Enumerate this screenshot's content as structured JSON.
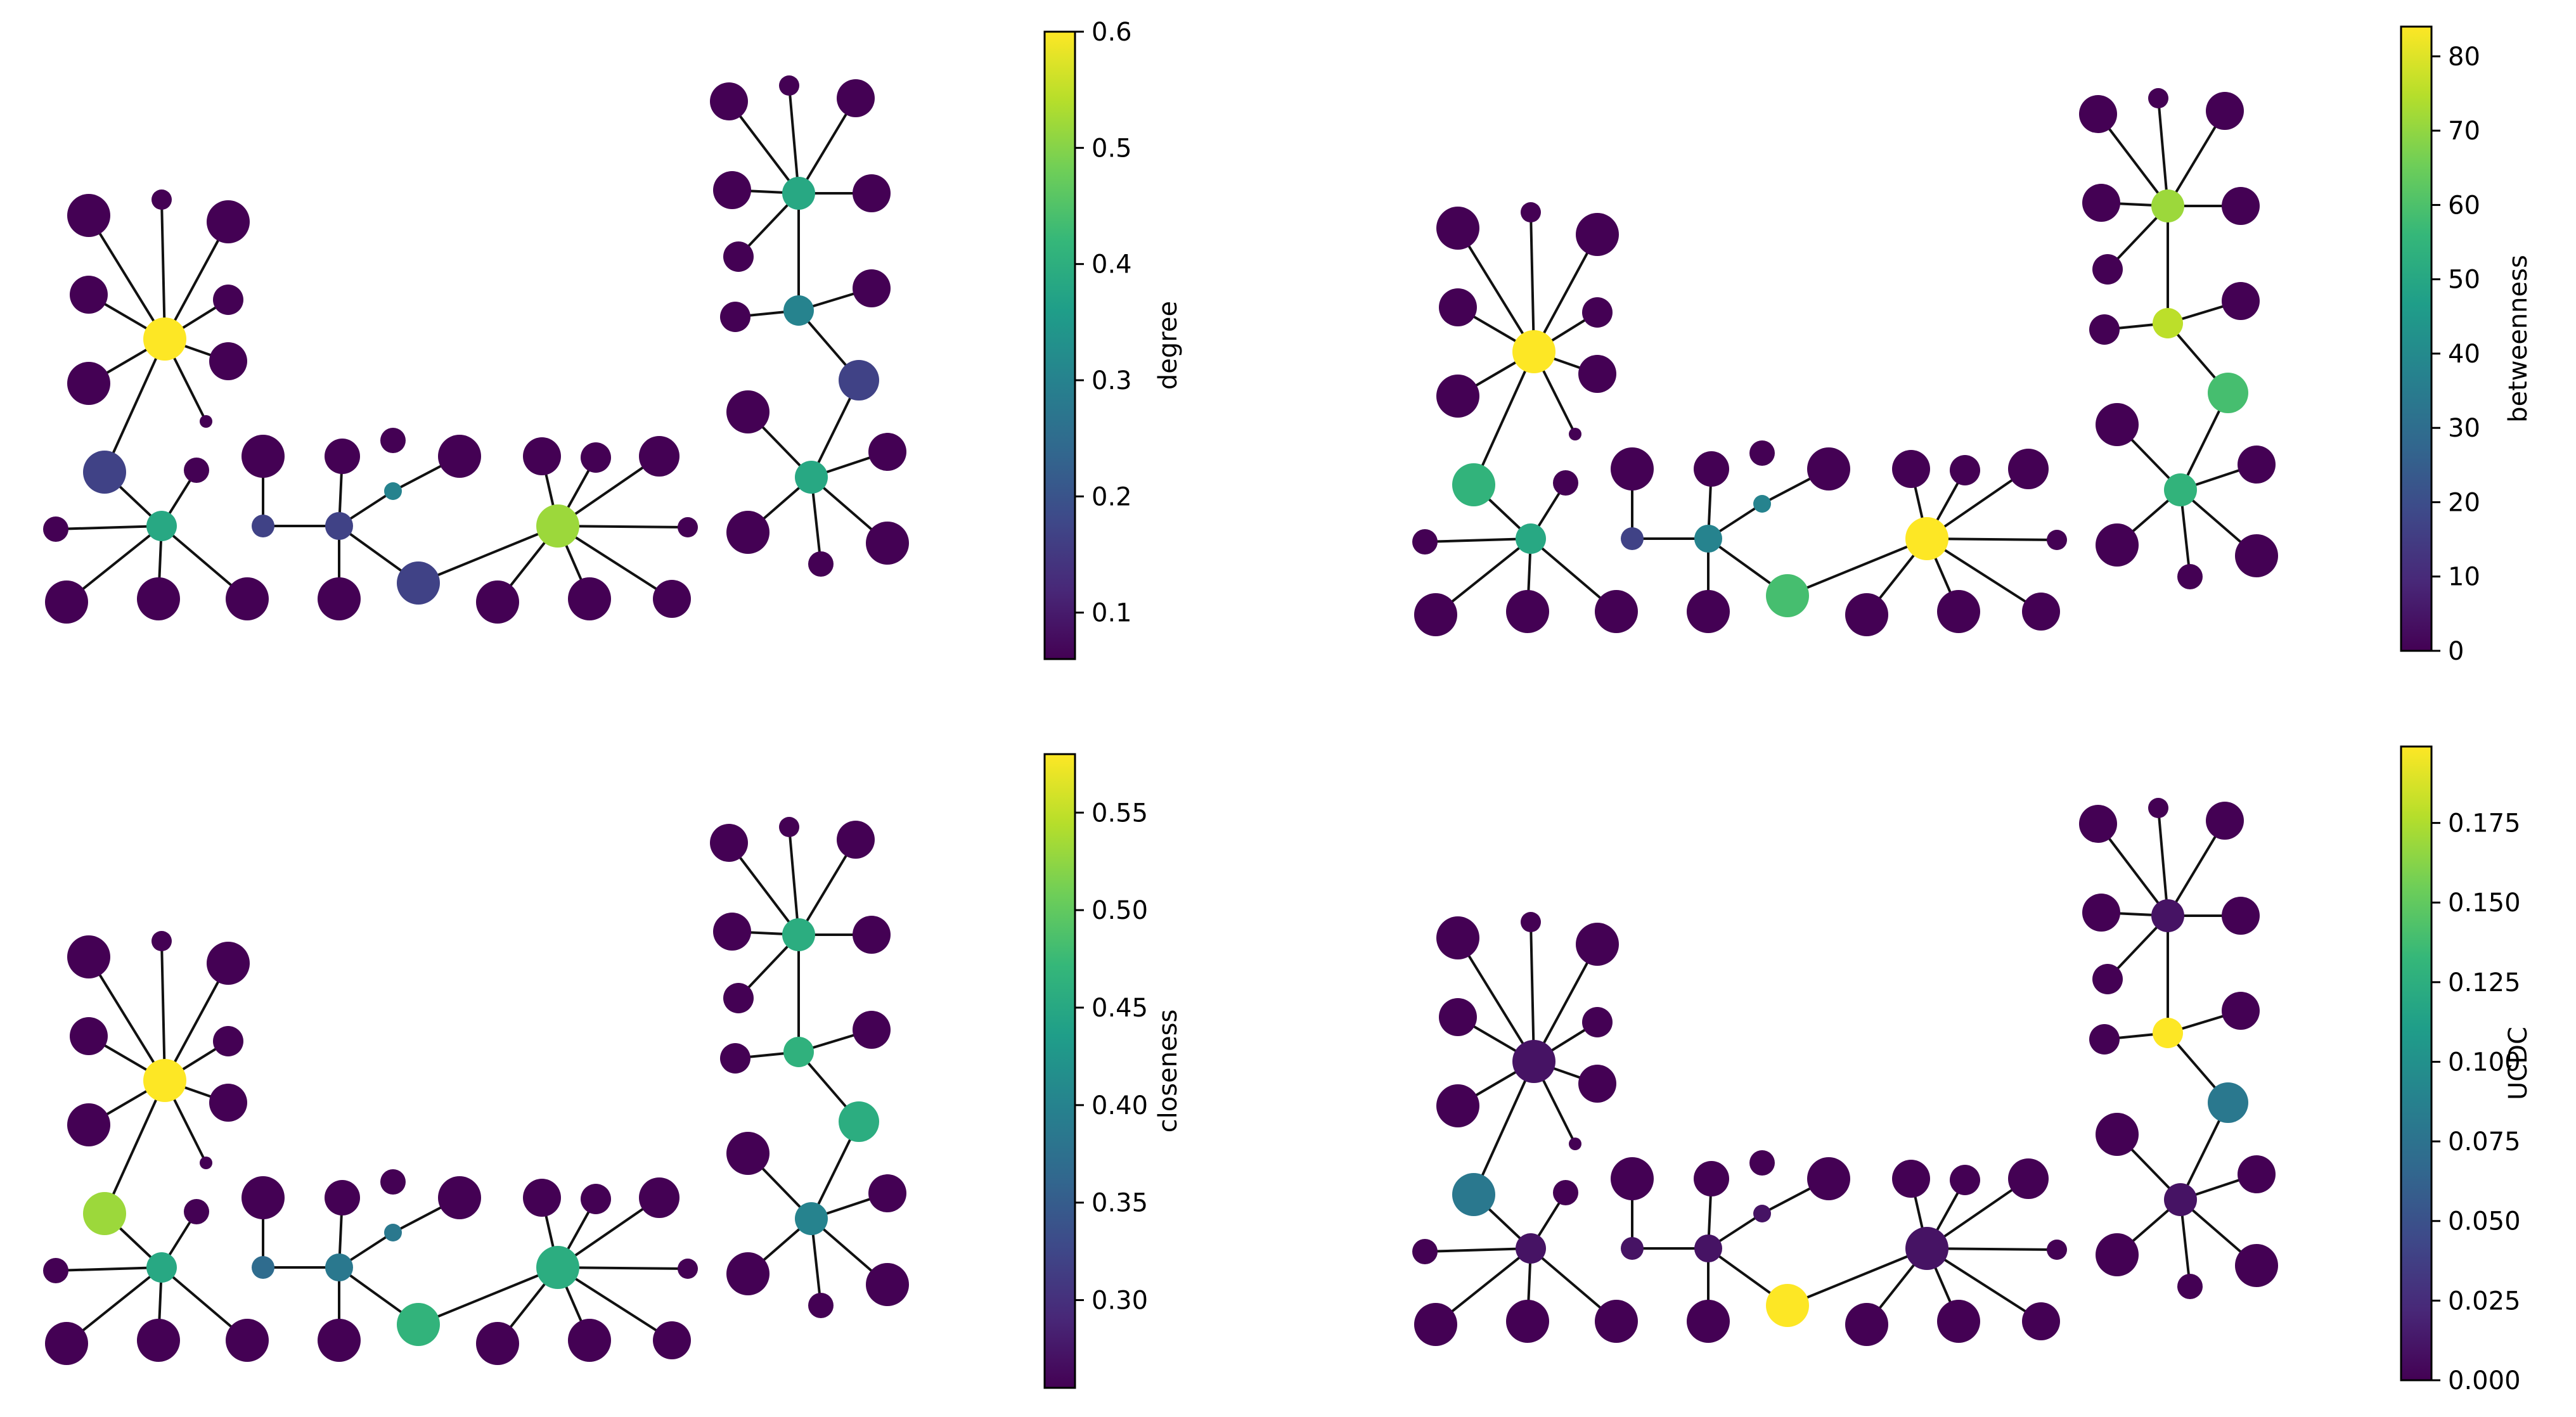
{
  "panels": [
    {
      "metric": "degree",
      "colorbar": {
        "label": "degree",
        "range": [
          0.06,
          0.6
        ],
        "ticks": [
          0.6,
          0.5,
          0.4,
          0.3,
          0.2,
          0.1
        ],
        "tick_labels": [
          "0.6",
          "0.5",
          "0.4",
          "0.3",
          "0.2",
          "0.1"
        ]
      },
      "node_values": {
        "A_hub": 1.0,
        "A_sub": 0.6,
        "A_bridge": 0.2,
        "C_hub1": 0.6,
        "C_mid": 0.2,
        "C_bridge": 0.2,
        "C_hub2": 0.85,
        "R_hub1": 0.6,
        "R_mid": 0.45,
        "R_bridge": 0.2,
        "R_hub2": 0.6,
        "C_small_bridge": 0.45,
        "C_left_bridge": 0.2
      }
    },
    {
      "metric": "betweenness",
      "colorbar": {
        "label": "betweenness",
        "range": [
          0,
          84
        ],
        "ticks": [
          80,
          70,
          60,
          50,
          40,
          30,
          20,
          10,
          0
        ],
        "tick_labels": [
          "80",
          "70",
          "60",
          "50",
          "40",
          "30",
          "20",
          "10",
          "0"
        ]
      },
      "node_values": {
        "A_hub": 1.0,
        "A_sub": 0.6,
        "A_bridge": 0.65,
        "C_hub1": 0.93,
        "C_mid": 0.45,
        "C_bridge": 0.7,
        "C_hub2": 1.0,
        "R_hub1": 0.85,
        "R_mid": 0.9,
        "R_bridge": 0.7,
        "R_hub2": 0.65,
        "C_small_bridge": 0.45,
        "C_left_bridge": 0.2
      }
    },
    {
      "metric": "closeness",
      "colorbar": {
        "label": "closeness",
        "range": [
          0.255,
          0.58
        ],
        "ticks": [
          0.55,
          0.5,
          0.45,
          0.4,
          0.35,
          0.3
        ],
        "tick_labels": [
          "0.55",
          "0.50",
          "0.45",
          "0.40",
          "0.35",
          "0.30"
        ]
      },
      "node_values": {
        "A_hub": 1.0,
        "A_sub": 0.6,
        "A_bridge": 0.85,
        "C_hub1": 0.6,
        "C_mid": 0.4,
        "C_bridge": 0.65,
        "C_hub2": 0.62,
        "R_hub1": 0.62,
        "R_mid": 0.64,
        "R_bridge": 0.62,
        "R_hub2": 0.45,
        "C_small_bridge": 0.4,
        "C_left_bridge": 0.35,
        "leaf_A": 0.45,
        "leaf_Asub": 0.2,
        "leaf_C1": 0.2,
        "leaf_C2": 0.2,
        "leaf_R1": 0.22,
        "leaf_R2": 0.22
      }
    },
    {
      "metric": "UCDC",
      "colorbar": {
        "label": "UCDC",
        "range": [
          0,
          0.199
        ],
        "ticks": [
          0.175,
          0.15,
          0.125,
          0.1,
          0.075,
          0.05,
          0.025,
          0.0
        ],
        "tick_labels": [
          "0.175",
          "0.150",
          "0.125",
          "0.100",
          "0.075",
          "0.050",
          "0.025",
          "0.000"
        ]
      },
      "node_values": {
        "A_hub": 0.05,
        "A_sub": 0.05,
        "A_bridge": 0.4,
        "C_hub1": 0.12,
        "C_mid": 0.05,
        "C_bridge": 1.0,
        "C_hub2": 0.05,
        "R_hub1": 0.05,
        "R_mid": 1.0,
        "R_bridge": 0.4,
        "R_hub2": 0.05,
        "C_small_bridge": 0.05,
        "C_left_bridge": 0.05
      }
    }
  ]
}
